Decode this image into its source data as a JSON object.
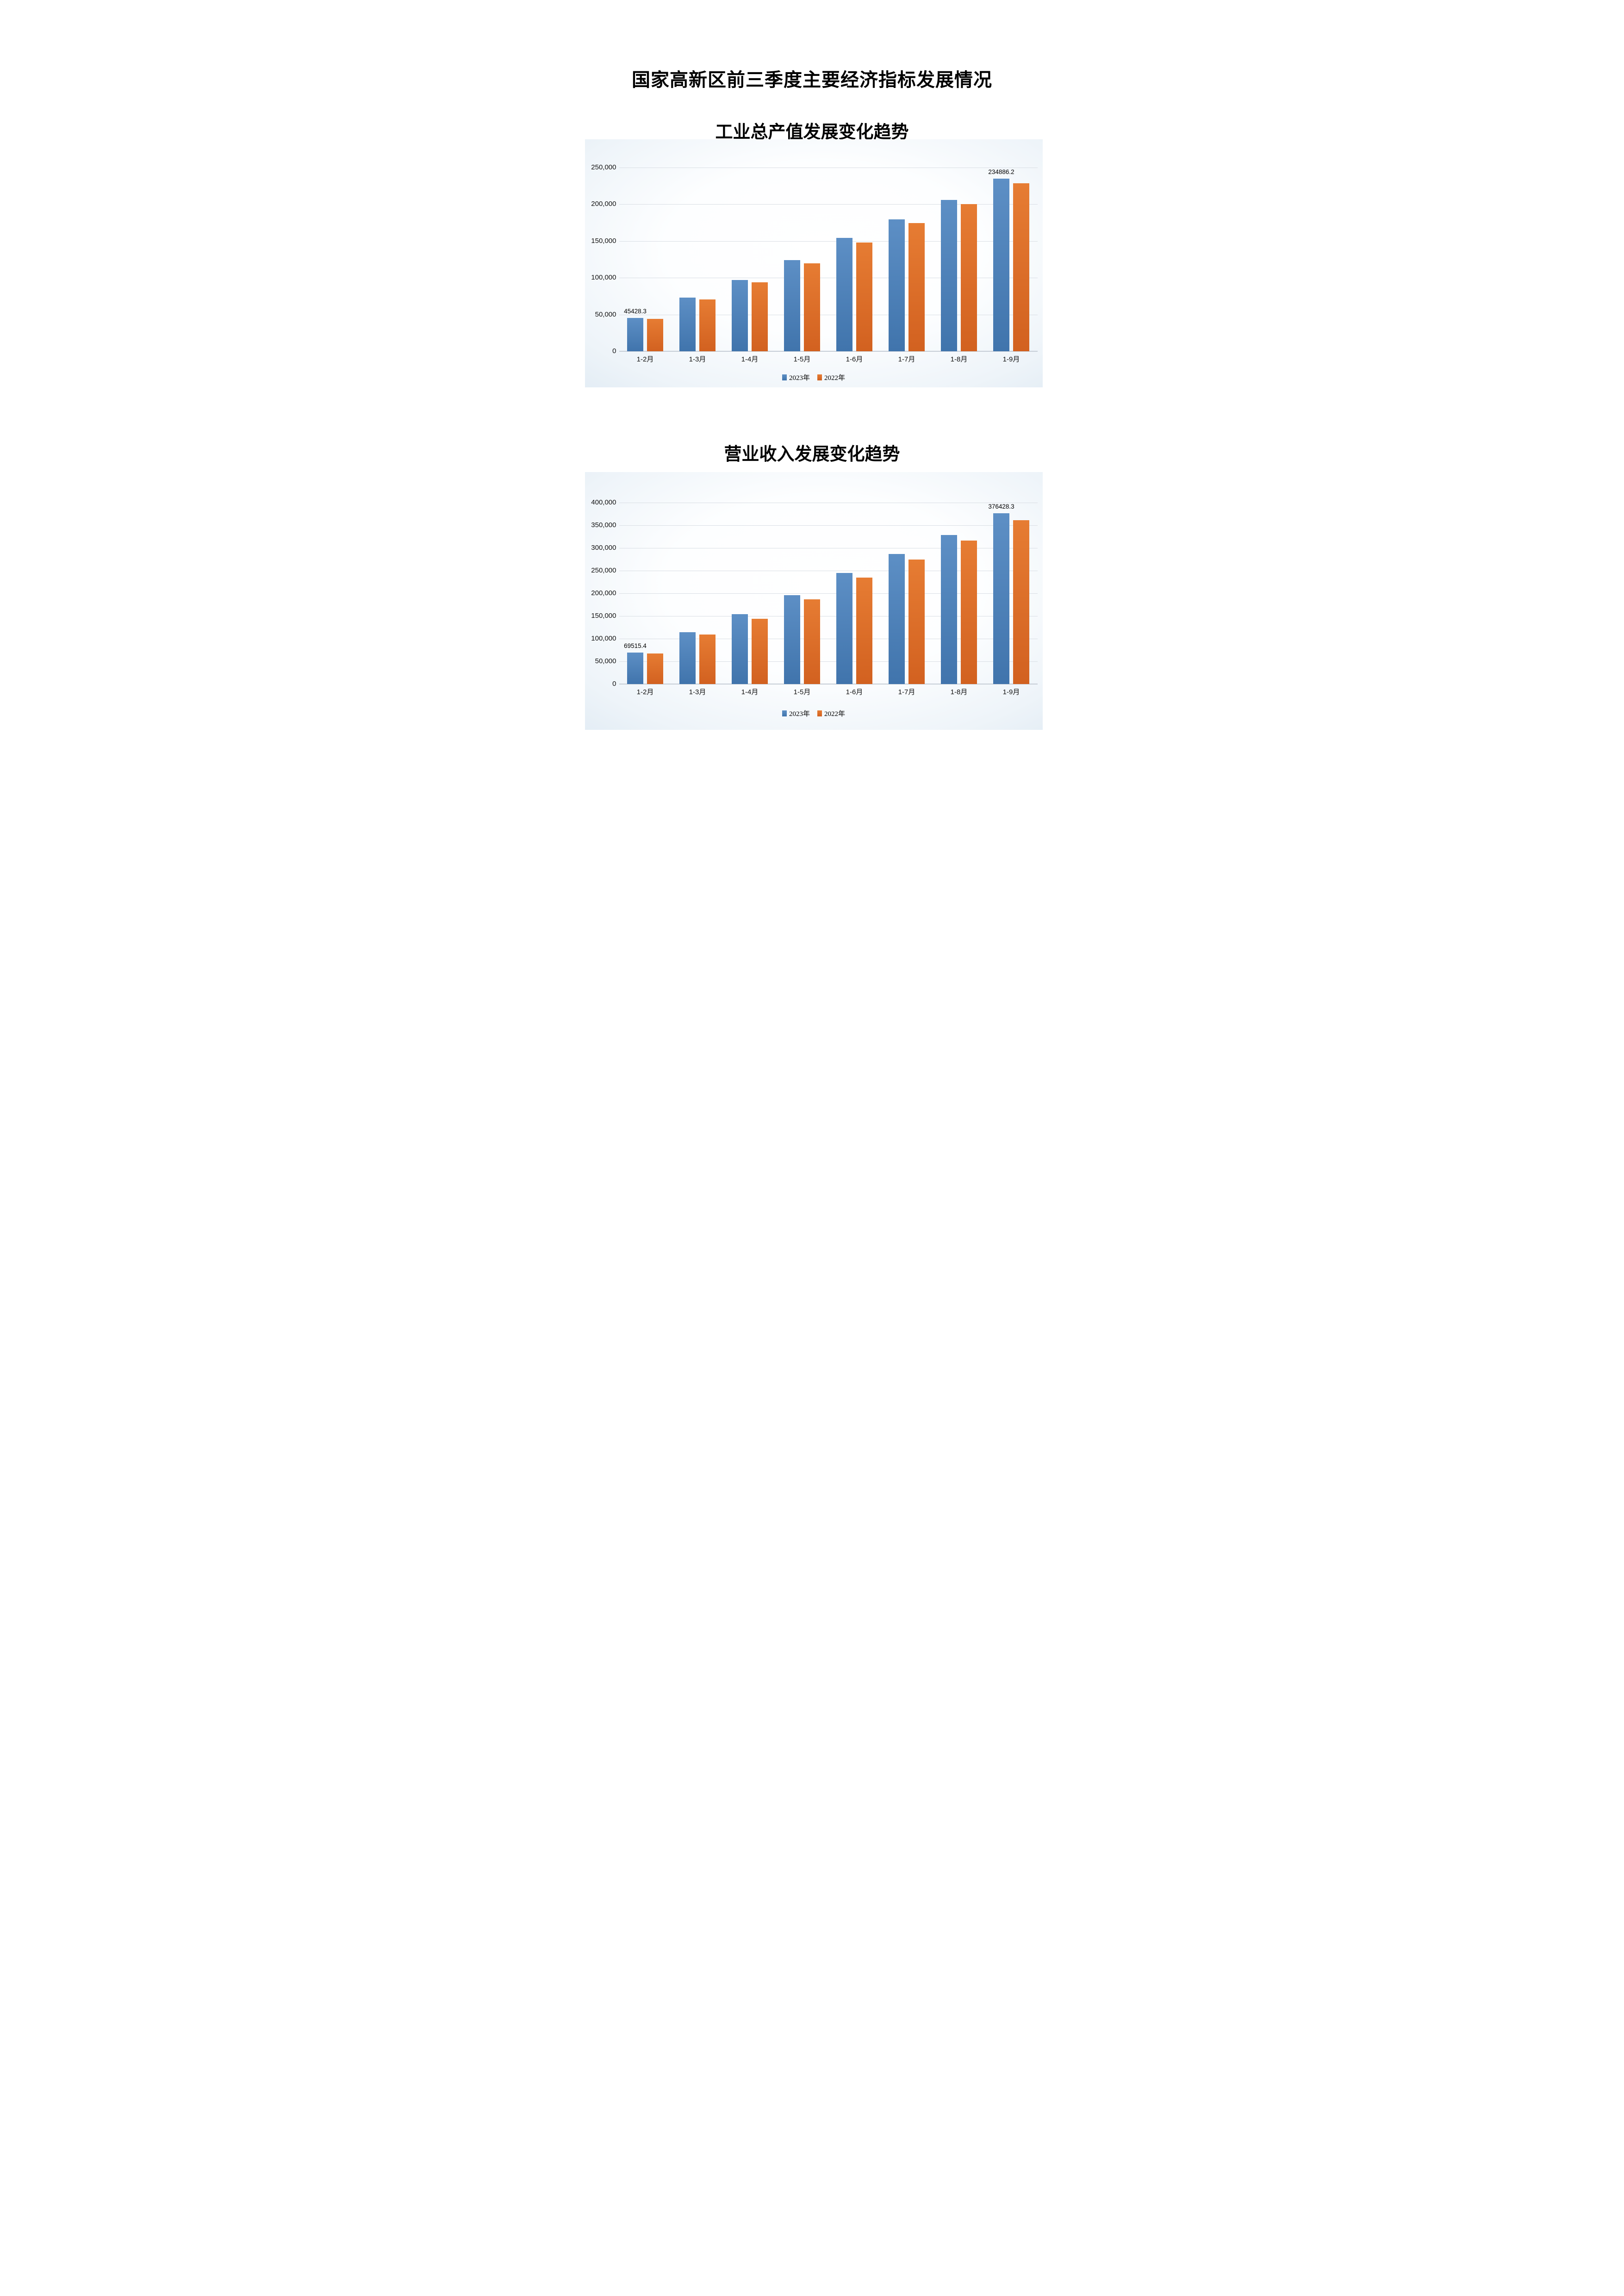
{
  "page": {
    "main_title": "国家高新区前三季度主要经济指标发展情况"
  },
  "colors": {
    "series_2023_top": "#5d8fc5",
    "series_2023_bottom": "#4074ac",
    "series_2022_top": "#e67c33",
    "series_2022_bottom": "#d26120",
    "gridline": "#d9dee4",
    "axis_line": "#c6cdd6",
    "chart_bg_edge": "#c5d8ea",
    "chart_bg_center": "#ffffff",
    "text": "#000000"
  },
  "chart_data": [
    {
      "type": "bar",
      "title": "工业总产值发展变化趋势",
      "categories": [
        "1-2月",
        "1-3月",
        "1-4月",
        "1-5月",
        "1-6月",
        "1-7月",
        "1-8月",
        "1-9月"
      ],
      "series": [
        {
          "name": "2023年",
          "color_top": "#5d8fc5",
          "color_bottom": "#4074ac",
          "values": [
            45428.3,
            72900,
            97300,
            124400,
            154300,
            179600,
            206000,
            234886.2
          ]
        },
        {
          "name": "2022年",
          "color_top": "#e67c33",
          "color_bottom": "#d26120",
          "values": [
            44300,
            70400,
            93900,
            119600,
            148300,
            174500,
            200400,
            228600
          ]
        }
      ],
      "ylim": [
        0,
        250000
      ],
      "ytick_step": 50000,
      "ytick_labels": [
        "0",
        "50,000",
        "100,000",
        "150,000",
        "200,000",
        "250,000"
      ],
      "grid": true,
      "legend_position": "bottom",
      "data_labels": [
        {
          "series": 0,
          "index": 0,
          "text": "45428.3"
        },
        {
          "series": 0,
          "index": 7,
          "text": "234886.2"
        }
      ]
    },
    {
      "type": "bar",
      "title": "营业收入发展变化趋势",
      "categories": [
        "1-2月",
        "1-3月",
        "1-4月",
        "1-5月",
        "1-6月",
        "1-7月",
        "1-8月",
        "1-9月"
      ],
      "series": [
        {
          "name": "2023年",
          "color_top": "#5d8fc5",
          "color_bottom": "#4074ac",
          "values": [
            69515.4,
            114300,
            153800,
            196300,
            245200,
            286500,
            328800,
            376428.3
          ]
        },
        {
          "name": "2022年",
          "color_top": "#e67c33",
          "color_bottom": "#d26120",
          "values": [
            67700,
            109200,
            143800,
            186300,
            235200,
            275000,
            316000,
            361500
          ]
        }
      ],
      "ylim": [
        0,
        400000
      ],
      "ytick_step": 50000,
      "ytick_labels": [
        "0",
        "50,000",
        "100,000",
        "150,000",
        "200,000",
        "250,000",
        "300,000",
        "350,000",
        "400,000"
      ],
      "grid": true,
      "legend_position": "bottom",
      "data_labels": [
        {
          "series": 0,
          "index": 0,
          "text": "69515.4"
        },
        {
          "series": 0,
          "index": 7,
          "text": "376428.3"
        }
      ]
    }
  ]
}
